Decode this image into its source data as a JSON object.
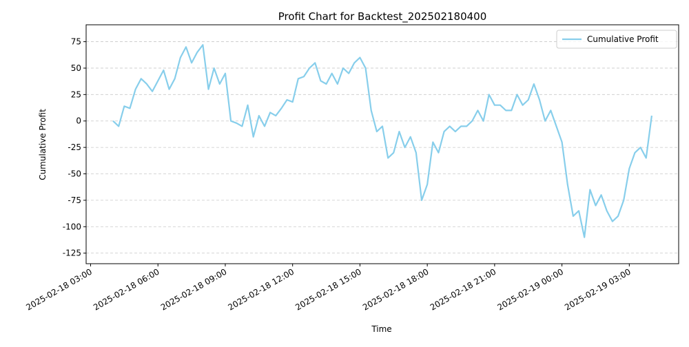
{
  "chart_data": {
    "type": "line",
    "title": "Profit Chart for Backtest_202502180400",
    "x_label": "Time",
    "y_label": "Cumulative Profit",
    "x": [
      "2025-02-18 04:00",
      "2025-02-18 04:15",
      "2025-02-18 04:30",
      "2025-02-18 04:45",
      "2025-02-18 05:00",
      "2025-02-18 05:15",
      "2025-02-18 05:30",
      "2025-02-18 05:45",
      "2025-02-18 06:00",
      "2025-02-18 06:15",
      "2025-02-18 06:30",
      "2025-02-18 06:45",
      "2025-02-18 07:00",
      "2025-02-18 07:15",
      "2025-02-18 07:30",
      "2025-02-18 07:45",
      "2025-02-18 08:00",
      "2025-02-18 08:15",
      "2025-02-18 08:30",
      "2025-02-18 08:45",
      "2025-02-18 09:00",
      "2025-02-18 09:15",
      "2025-02-18 09:30",
      "2025-02-18 09:45",
      "2025-02-18 10:00",
      "2025-02-18 10:15",
      "2025-02-18 10:30",
      "2025-02-18 10:45",
      "2025-02-18 11:00",
      "2025-02-18 11:15",
      "2025-02-18 11:30",
      "2025-02-18 11:45",
      "2025-02-18 12:00",
      "2025-02-18 12:15",
      "2025-02-18 12:30",
      "2025-02-18 12:45",
      "2025-02-18 13:00",
      "2025-02-18 13:15",
      "2025-02-18 13:30",
      "2025-02-18 13:45",
      "2025-02-18 14:00",
      "2025-02-18 14:15",
      "2025-02-18 14:30",
      "2025-02-18 14:45",
      "2025-02-18 15:00",
      "2025-02-18 15:15",
      "2025-02-18 15:30",
      "2025-02-18 15:45",
      "2025-02-18 16:00",
      "2025-02-18 16:15",
      "2025-02-18 16:30",
      "2025-02-18 16:45",
      "2025-02-18 17:00",
      "2025-02-18 17:15",
      "2025-02-18 17:30",
      "2025-02-18 17:45",
      "2025-02-18 18:00",
      "2025-02-18 18:15",
      "2025-02-18 18:30",
      "2025-02-18 18:45",
      "2025-02-18 19:00",
      "2025-02-18 19:15",
      "2025-02-18 19:30",
      "2025-02-18 19:45",
      "2025-02-18 20:00",
      "2025-02-18 20:15",
      "2025-02-18 20:30",
      "2025-02-18 20:45",
      "2025-02-18 21:00",
      "2025-02-18 21:15",
      "2025-02-18 21:30",
      "2025-02-18 21:45",
      "2025-02-18 22:00",
      "2025-02-18 22:15",
      "2025-02-18 22:30",
      "2025-02-18 22:45",
      "2025-02-18 23:00",
      "2025-02-18 23:15",
      "2025-02-18 23:30",
      "2025-02-18 23:45",
      "2025-02-19 00:00",
      "2025-02-19 00:15",
      "2025-02-19 00:30",
      "2025-02-19 00:45",
      "2025-02-19 01:00",
      "2025-02-19 01:15",
      "2025-02-19 01:30",
      "2025-02-19 01:45",
      "2025-02-19 02:00",
      "2025-02-19 02:15",
      "2025-02-19 02:30",
      "2025-02-19 02:45",
      "2025-02-19 03:00",
      "2025-02-19 03:15",
      "2025-02-19 03:30",
      "2025-02-19 03:45",
      "2025-02-19 04:00"
    ],
    "series": [
      {
        "name": "Cumulative Profit",
        "color": "#87ceeb",
        "values": [
          0,
          -5,
          14,
          12,
          30,
          40,
          35,
          28,
          38,
          48,
          30,
          40,
          60,
          70,
          55,
          65,
          72,
          30,
          50,
          35,
          45,
          0,
          -2,
          -5,
          15,
          -15,
          5,
          -5,
          8,
          5,
          12,
          20,
          18,
          40,
          42,
          50,
          55,
          38,
          35,
          45,
          35,
          50,
          45,
          55,
          60,
          50,
          10,
          -10,
          -5,
          -35,
          -30,
          -10,
          -25,
          -15,
          -30,
          -75,
          -60,
          -20,
          -30,
          -10,
          -5,
          -10,
          -5,
          -5,
          0,
          10,
          0,
          25,
          15,
          15,
          10,
          10,
          25,
          15,
          20,
          35,
          20,
          0,
          10,
          -5,
          -20,
          -60,
          -90,
          -85,
          -110,
          -65,
          -80,
          -70,
          -85,
          -95,
          -90,
          -75,
          -45,
          -30,
          -25,
          -35,
          5
        ]
      }
    ],
    "xlim": [
      "2025-02-18 02:48",
      "2025-02-19 05:12"
    ],
    "xticks": [
      "2025-02-18 03:00",
      "2025-02-18 06:00",
      "2025-02-18 09:00",
      "2025-02-18 12:00",
      "2025-02-18 15:00",
      "2025-02-18 18:00",
      "2025-02-18 21:00",
      "2025-02-19 00:00",
      "2025-02-19 03:00"
    ],
    "ylim": [
      -135,
      91
    ],
    "yticks": [
      -125,
      -100,
      -75,
      -50,
      -25,
      0,
      25,
      50,
      75
    ],
    "grid": "y",
    "legend": "upper right"
  }
}
